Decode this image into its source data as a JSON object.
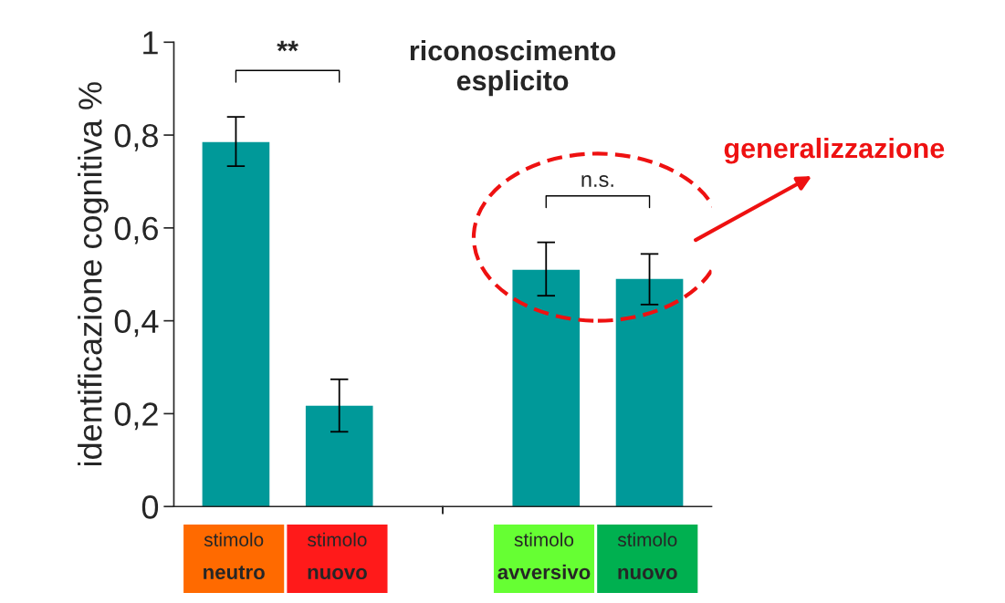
{
  "chart_data": {
    "type": "bar",
    "title": "riconoscimento\nesplicito",
    "ylabel": "identificazione cognitiva %",
    "categories": [
      "stimolo\nneutro",
      "stimolo\nnuovo",
      null,
      "stimolo\navversivo",
      "stimolo\nnuovo"
    ],
    "values": [
      0.785,
      0.217,
      null,
      0.51,
      0.49
    ],
    "color": "#009999",
    "errors": [
      [
        0.733,
        0.839
      ],
      [
        0.161,
        0.274
      ],
      null,
      [
        0.454,
        0.569
      ],
      [
        0.435,
        0.544
      ]
    ],
    "ylim": [
      0,
      1
    ],
    "yticks": [
      0,
      {
        "value": 0.2,
        "label": "0,2"
      },
      {
        "value": 0.4,
        "label": "0,4"
      },
      {
        "value": 0.6,
        "label": "0,6"
      },
      {
        "value": 0.8,
        "label": "0,8"
      },
      1
    ],
    "annotations": [
      "**",
      "n.s.",
      "generalizzazione"
    ],
    "grid": false,
    "legend": false
  }
}
